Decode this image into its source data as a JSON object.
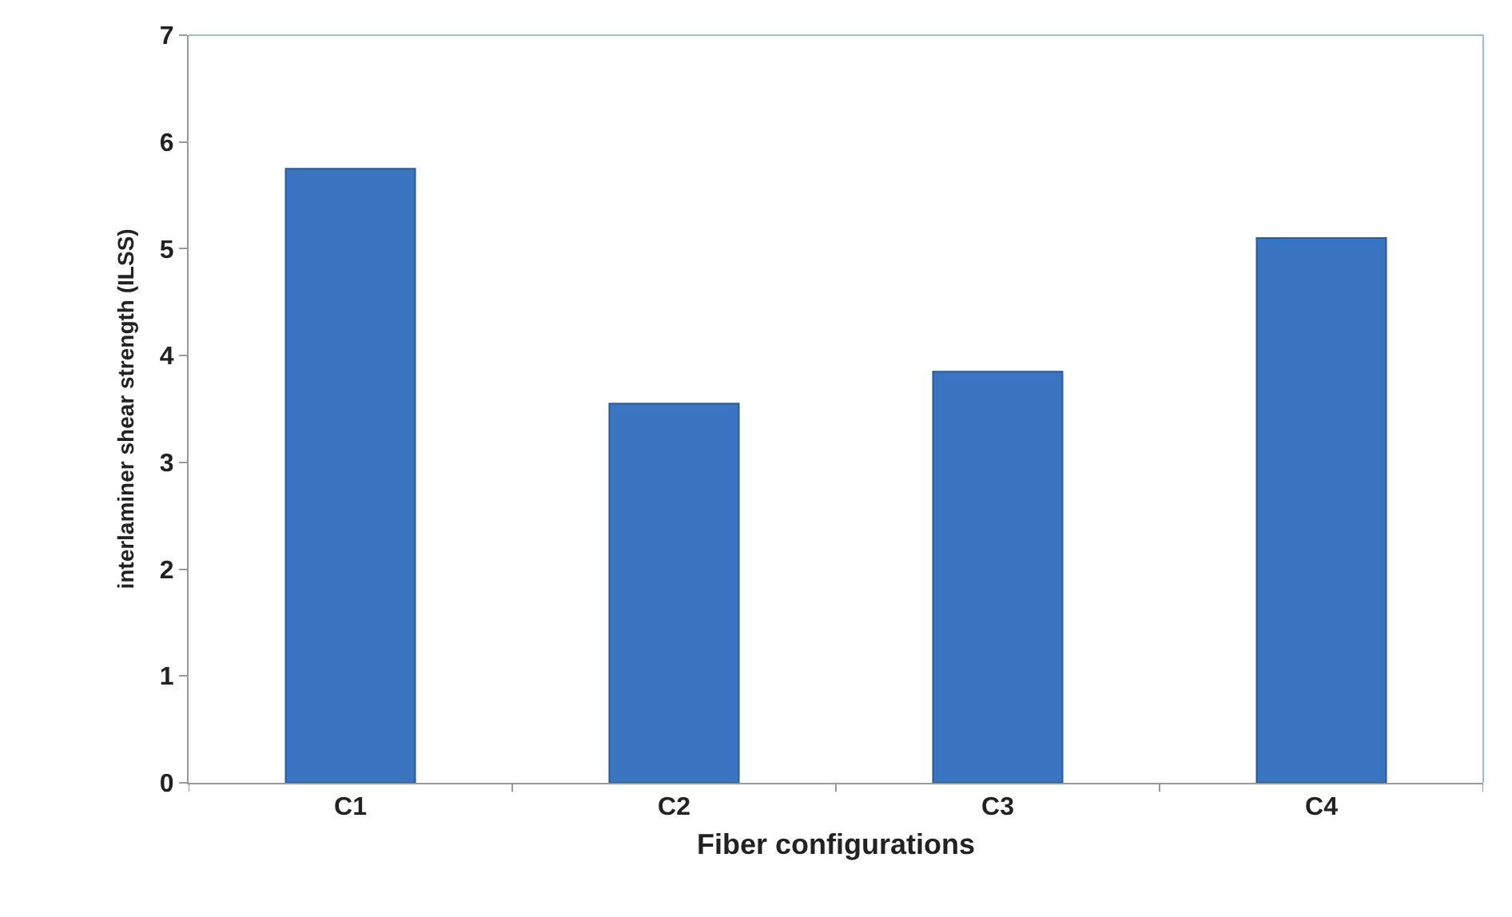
{
  "chart_data": {
    "type": "bar",
    "xlabel": "Fiber configurations",
    "ylabel": "interlaminer shear strength (ILSS)",
    "categories": [
      "C1",
      "C2",
      "C3",
      "C4"
    ],
    "values": [
      5.75,
      3.55,
      3.85,
      5.1
    ],
    "color": "#3b74c0",
    "ylim": [
      0,
      7
    ],
    "yticks": [
      0,
      1,
      2,
      3,
      4,
      5,
      6,
      7
    ]
  }
}
